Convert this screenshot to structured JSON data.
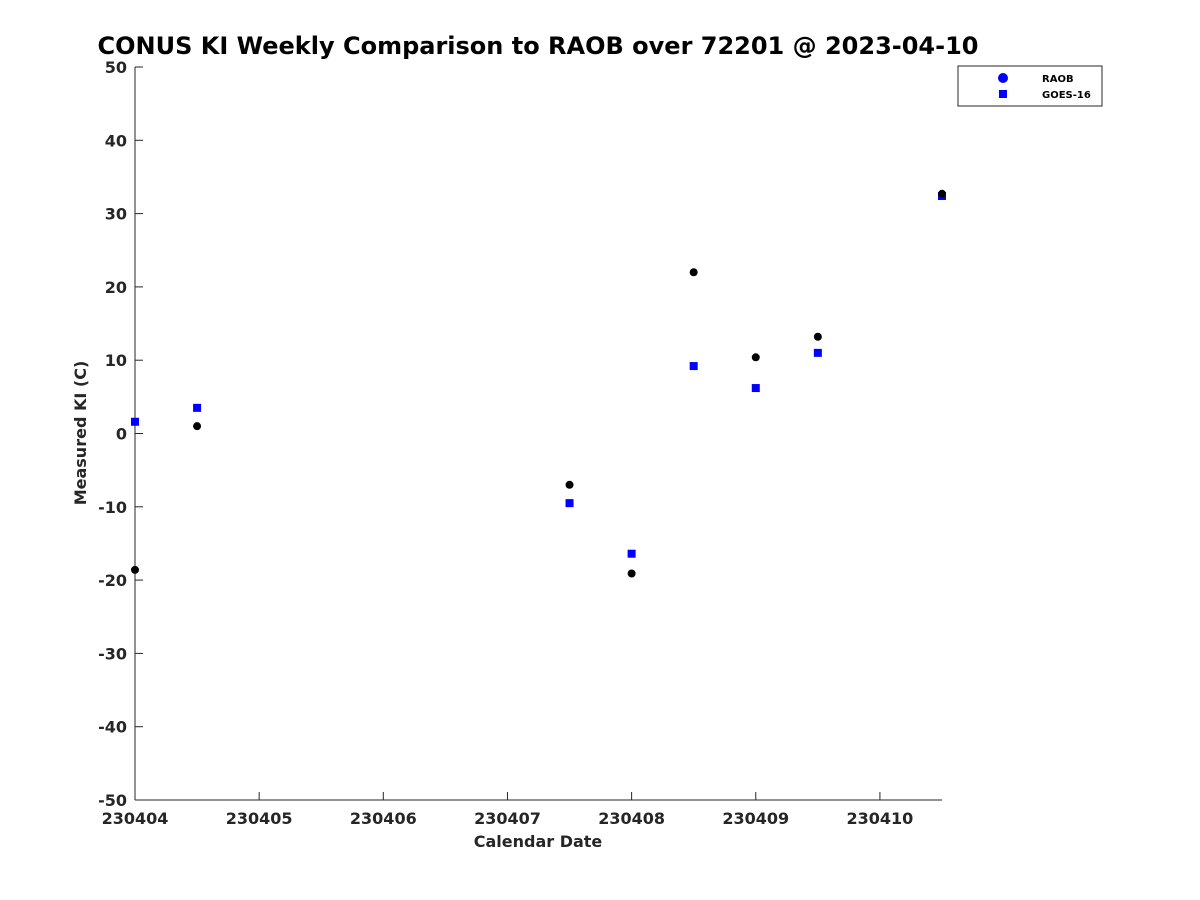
{
  "chart_data": {
    "type": "scatter",
    "title": "CONUS KI Weekly Comparison to RAOB over 72201 @ 2023-04-10",
    "xlabel": "Calendar Date",
    "ylabel": "Measured KI (C)",
    "x_ticks": [
      "230404",
      "230405",
      "230406",
      "230407",
      "230408",
      "230409",
      "230410"
    ],
    "xlim": [
      4.0,
      10.5
    ],
    "ylim": [
      -50,
      50
    ],
    "y_ticks": [
      -50,
      -40,
      -30,
      -20,
      -10,
      0,
      10,
      20,
      30,
      40,
      50
    ],
    "grid": false,
    "legend_position": "top-right",
    "series": [
      {
        "name": "RAOB",
        "marker": "circle",
        "legend_color": "#0000ff",
        "point_color": "#000000",
        "points": [
          {
            "x": 4.0,
            "y": -18.6
          },
          {
            "x": 4.5,
            "y": 1.0
          },
          {
            "x": 7.5,
            "y": -7.0
          },
          {
            "x": 8.0,
            "y": -19.1
          },
          {
            "x": 8.5,
            "y": 22.0
          },
          {
            "x": 9.0,
            "y": 10.4
          },
          {
            "x": 9.5,
            "y": 13.2
          },
          {
            "x": 10.5,
            "y": 32.7
          }
        ]
      },
      {
        "name": "GOES-16",
        "marker": "square",
        "legend_color": "#0000ff",
        "point_color": "#0000ff",
        "points": [
          {
            "x": 4.0,
            "y": 1.6
          },
          {
            "x": 4.5,
            "y": 3.5
          },
          {
            "x": 7.5,
            "y": -9.5
          },
          {
            "x": 8.0,
            "y": -16.4
          },
          {
            "x": 8.5,
            "y": 9.2
          },
          {
            "x": 9.0,
            "y": 6.2
          },
          {
            "x": 9.5,
            "y": 11.0
          },
          {
            "x": 10.5,
            "y": 32.4
          }
        ]
      }
    ]
  }
}
